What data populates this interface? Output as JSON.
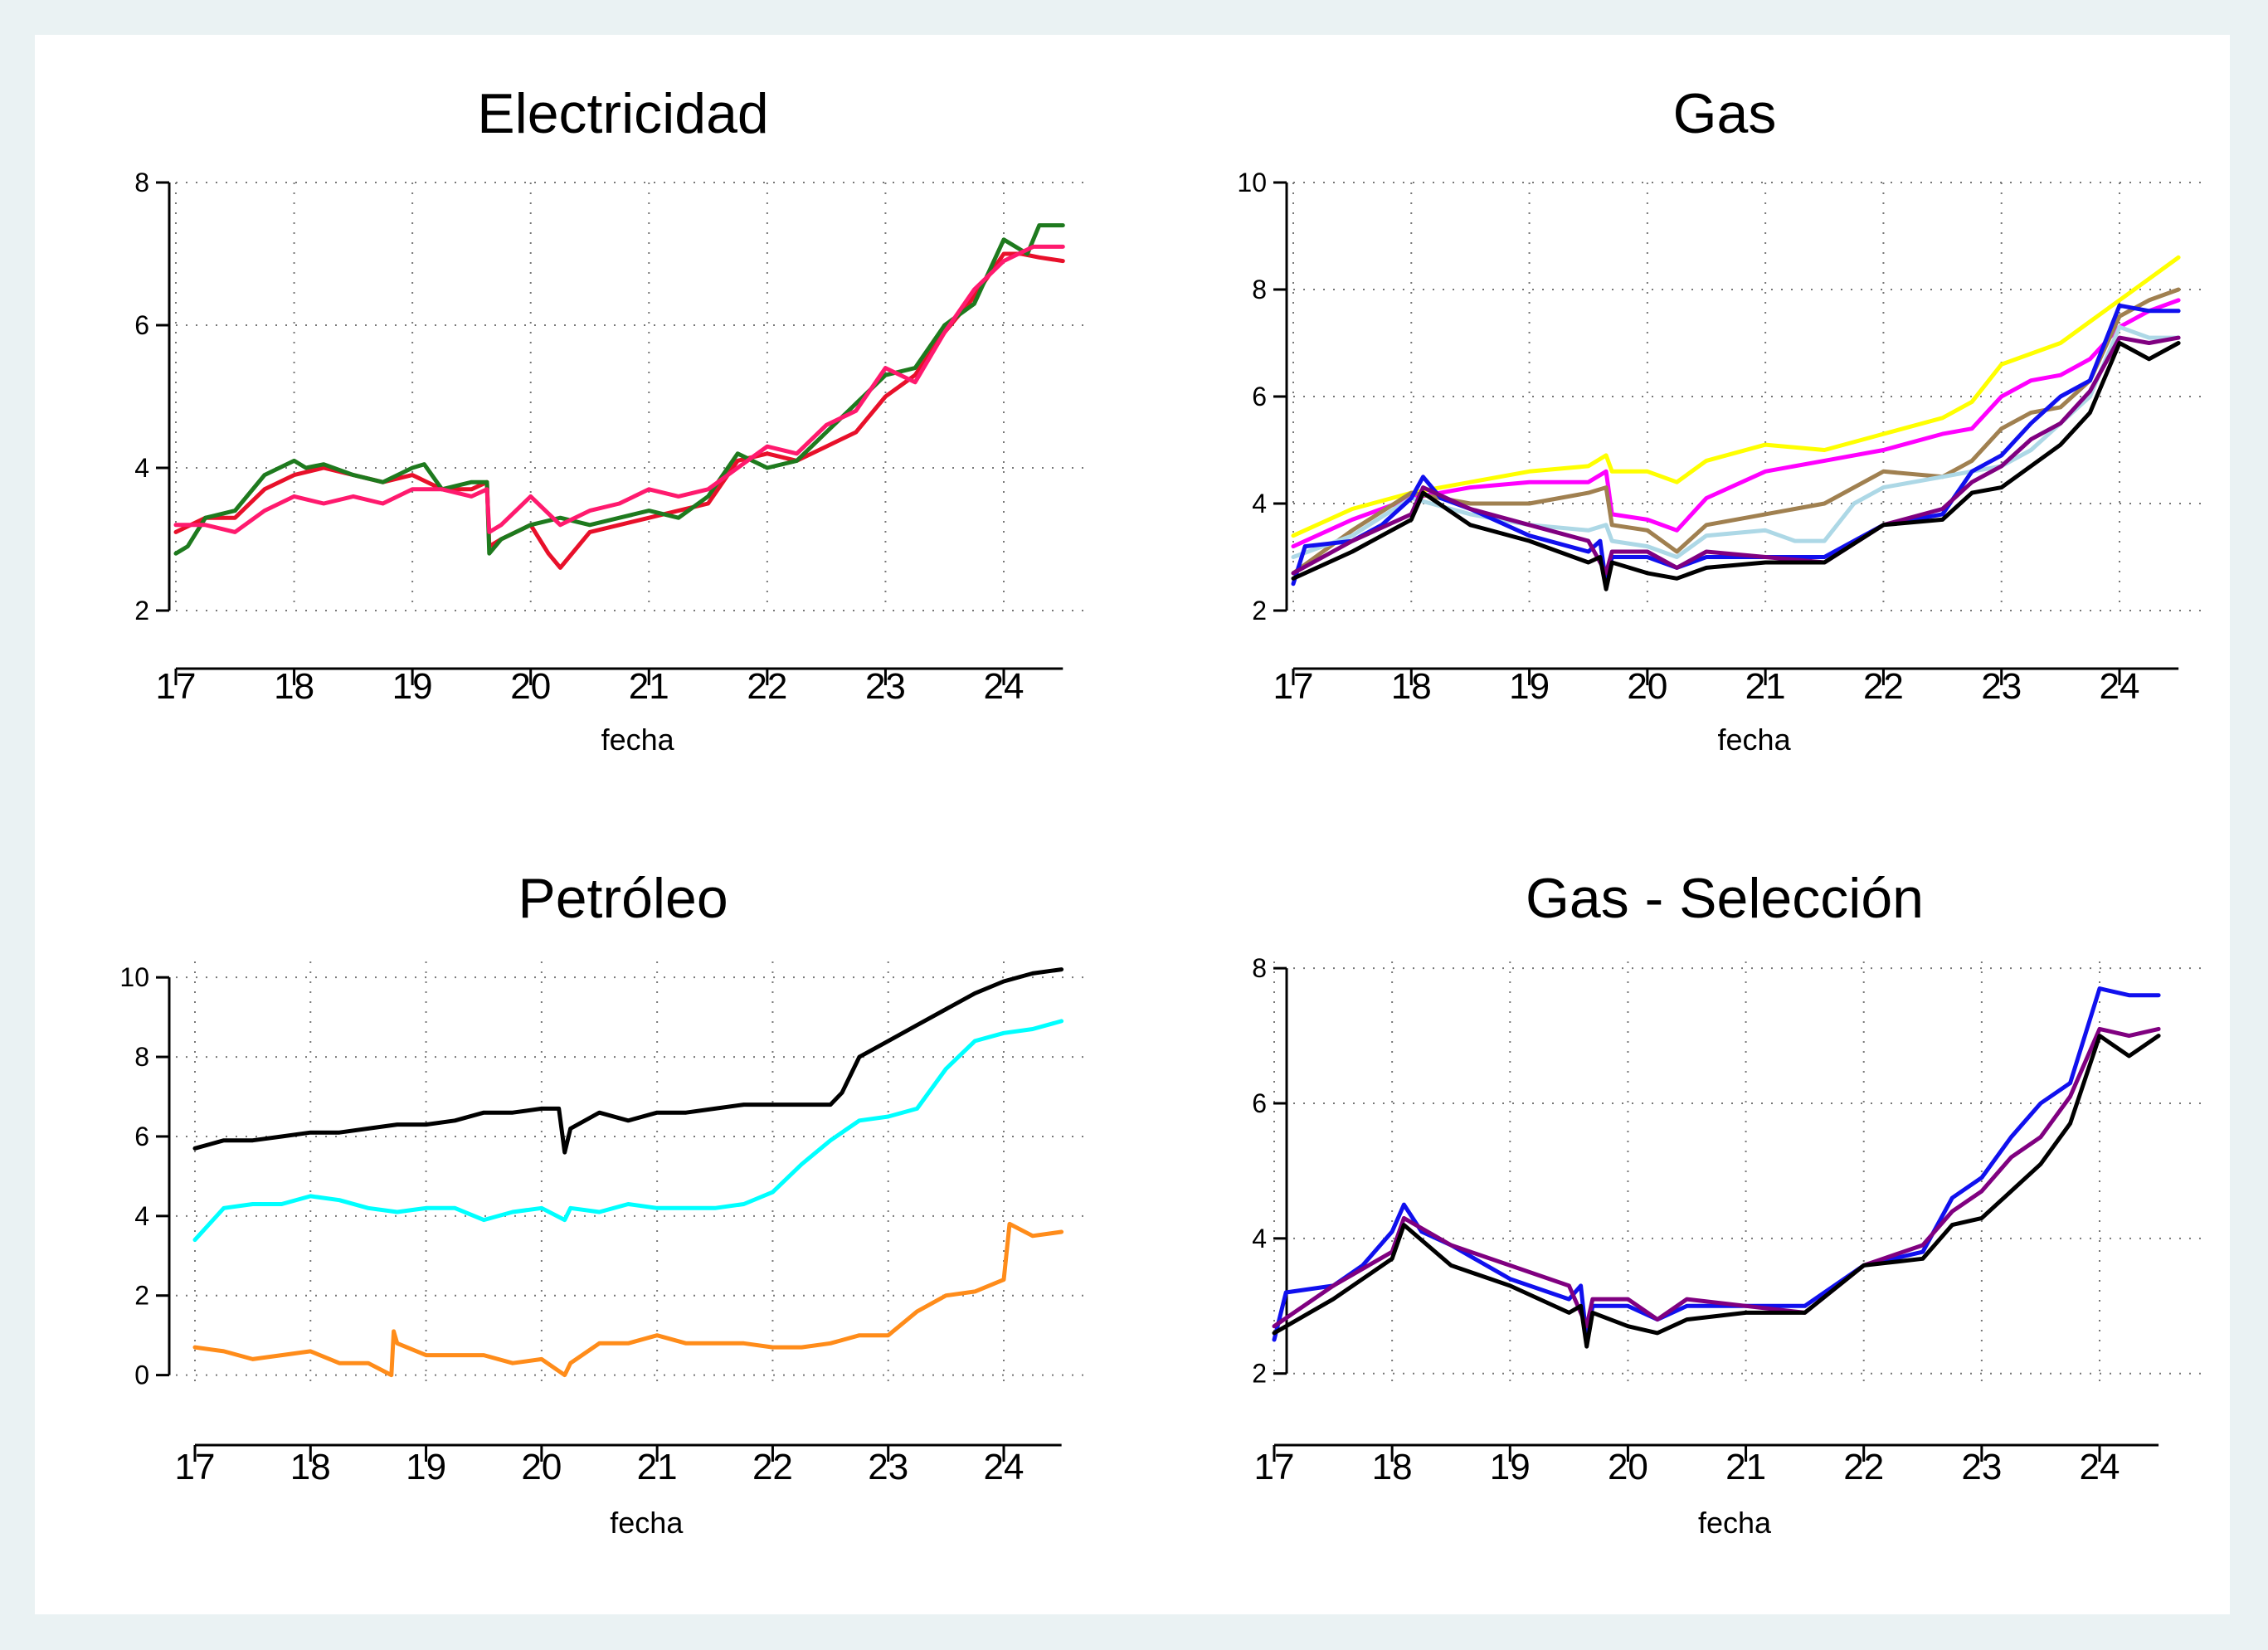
{
  "chart_data": [
    {
      "type": "line",
      "title": "Electricidad",
      "xlabel": "fecha",
      "xticks": [
        "17",
        "18",
        "19",
        "20",
        "21",
        "22",
        "23",
        "24"
      ],
      "xlim": [
        17,
        24.5
      ],
      "yticks": [
        "2",
        "4",
        "6",
        "8"
      ],
      "ylim": [
        2,
        8
      ],
      "grid": true,
      "series": [
        {
          "color": "#e8102a",
          "x": [
            17.0,
            17.25,
            17.5,
            17.75,
            18.0,
            18.25,
            18.5,
            18.75,
            19.0,
            19.25,
            19.5,
            19.63,
            19.65,
            19.75,
            20.0,
            20.15,
            20.25,
            20.5,
            20.75,
            21.0,
            21.25,
            21.5,
            21.75,
            22.0,
            22.25,
            22.5,
            22.75,
            23.0,
            23.25,
            23.5,
            23.75,
            24.0,
            24.15,
            24.3,
            24.5
          ],
          "y": [
            3.1,
            3.3,
            3.3,
            3.7,
            3.9,
            4.0,
            3.9,
            3.8,
            3.9,
            3.7,
            3.7,
            3.8,
            2.9,
            3.0,
            3.2,
            2.8,
            2.6,
            3.1,
            3.2,
            3.3,
            3.4,
            3.5,
            4.1,
            4.2,
            4.1,
            4.3,
            4.5,
            5.0,
            5.3,
            5.9,
            6.4,
            7.0,
            7.0,
            6.95,
            6.9
          ]
        },
        {
          "color": "#1e7a1e",
          "x": [
            17.0,
            17.1,
            17.25,
            17.5,
            17.75,
            18.0,
            18.1,
            18.25,
            18.5,
            18.75,
            19.0,
            19.1,
            19.25,
            19.5,
            19.63,
            19.65,
            19.75,
            20.0,
            20.25,
            20.5,
            20.75,
            21.0,
            21.25,
            21.5,
            21.75,
            22.0,
            22.25,
            22.5,
            22.75,
            23.0,
            23.25,
            23.5,
            23.75,
            24.0,
            24.2,
            24.3,
            24.5
          ],
          "y": [
            2.8,
            2.9,
            3.3,
            3.4,
            3.9,
            4.1,
            4.0,
            4.05,
            3.9,
            3.8,
            4.0,
            4.05,
            3.7,
            3.8,
            3.8,
            2.8,
            3.0,
            3.2,
            3.3,
            3.2,
            3.3,
            3.4,
            3.3,
            3.6,
            4.2,
            4.0,
            4.1,
            4.5,
            4.9,
            5.3,
            5.4,
            6.0,
            6.3,
            7.2,
            7.0,
            7.4,
            7.4
          ]
        },
        {
          "color": "#ff1a6e",
          "x": [
            17.0,
            17.25,
            17.5,
            17.75,
            18.0,
            18.25,
            18.5,
            18.75,
            19.0,
            19.25,
            19.5,
            19.63,
            19.65,
            19.75,
            20.0,
            20.25,
            20.5,
            20.75,
            21.0,
            21.25,
            21.5,
            21.75,
            22.0,
            22.25,
            22.5,
            22.75,
            23.0,
            23.25,
            23.5,
            23.75,
            24.0,
            24.25,
            24.5
          ],
          "y": [
            3.2,
            3.2,
            3.1,
            3.4,
            3.6,
            3.5,
            3.6,
            3.5,
            3.7,
            3.7,
            3.6,
            3.7,
            3.1,
            3.2,
            3.6,
            3.2,
            3.4,
            3.5,
            3.7,
            3.6,
            3.7,
            4.0,
            4.3,
            4.2,
            4.6,
            4.8,
            5.4,
            5.2,
            5.9,
            6.5,
            6.9,
            7.1,
            7.1
          ]
        }
      ]
    },
    {
      "type": "line",
      "title": "Gas",
      "xlabel": "fecha",
      "xticks": [
        "17",
        "18",
        "19",
        "20",
        "21",
        "22",
        "23",
        "24"
      ],
      "xlim": [
        17,
        24.5
      ],
      "yticks": [
        "2",
        "4",
        "6",
        "8",
        "10"
      ],
      "ylim": [
        2,
        10
      ],
      "grid": true,
      "series": [
        {
          "color": "#ffff00",
          "x": [
            17.0,
            17.5,
            18.0,
            18.5,
            19.0,
            19.5,
            19.65,
            19.7,
            20.0,
            20.25,
            20.5,
            21.0,
            21.5,
            22.0,
            22.5,
            22.75,
            23.0,
            23.25,
            23.5,
            23.75,
            24.0,
            24.25,
            24.5
          ],
          "y": [
            3.4,
            3.9,
            4.2,
            4.4,
            4.6,
            4.7,
            4.9,
            4.6,
            4.6,
            4.4,
            4.8,
            5.1,
            5.0,
            5.3,
            5.6,
            5.9,
            6.6,
            6.8,
            7.0,
            7.4,
            7.8,
            8.2,
            8.6
          ]
        },
        {
          "color": "#ff00ff",
          "x": [
            17.0,
            17.5,
            18.0,
            18.5,
            19.0,
            19.5,
            19.65,
            19.7,
            20.0,
            20.25,
            20.5,
            21.0,
            21.5,
            22.0,
            22.5,
            22.75,
            23.0,
            23.25,
            23.5,
            23.75,
            24.0,
            24.25,
            24.5
          ],
          "y": [
            3.2,
            3.7,
            4.1,
            4.3,
            4.4,
            4.4,
            4.6,
            3.8,
            3.7,
            3.5,
            4.1,
            4.6,
            4.8,
            5.0,
            5.3,
            5.4,
            6.0,
            6.3,
            6.4,
            6.7,
            7.3,
            7.6,
            7.8
          ]
        },
        {
          "color": "#a08050",
          "x": [
            17.0,
            17.5,
            18.0,
            18.5,
            19.0,
            19.5,
            19.65,
            19.7,
            20.0,
            20.25,
            20.5,
            21.0,
            21.5,
            22.0,
            22.5,
            22.75,
            23.0,
            23.25,
            23.5,
            23.75,
            24.0,
            24.25,
            24.5
          ],
          "y": [
            2.7,
            3.5,
            4.2,
            4.0,
            4.0,
            4.2,
            4.3,
            3.6,
            3.5,
            3.1,
            3.6,
            3.8,
            4.0,
            4.6,
            4.5,
            4.8,
            5.4,
            5.7,
            5.8,
            6.3,
            7.5,
            7.8,
            8.0
          ]
        },
        {
          "color": "#add8e6",
          "x": [
            17.0,
            17.5,
            18.0,
            18.5,
            19.0,
            19.5,
            19.65,
            19.7,
            20.0,
            20.25,
            20.5,
            21.0,
            21.25,
            21.5,
            21.75,
            22.0,
            22.25,
            22.5,
            22.75,
            23.0,
            23.25,
            23.5,
            23.75,
            24.0,
            24.25,
            24.5
          ],
          "y": [
            3.0,
            3.4,
            4.1,
            3.8,
            3.6,
            3.5,
            3.6,
            3.3,
            3.2,
            3.0,
            3.4,
            3.5,
            3.3,
            3.3,
            4.0,
            4.3,
            4.4,
            4.5,
            4.6,
            4.7,
            5.0,
            5.5,
            6.0,
            7.3,
            7.1,
            7.1
          ]
        },
        {
          "color": "#1010ee",
          "x": [
            17.0,
            17.1,
            17.5,
            17.75,
            18.0,
            18.1,
            18.25,
            18.5,
            19.0,
            19.5,
            19.6,
            19.65,
            19.7,
            20.0,
            20.25,
            20.5,
            21.0,
            21.5,
            22.0,
            22.5,
            22.75,
            23.0,
            23.25,
            23.5,
            23.75,
            24.0,
            24.25,
            24.5
          ],
          "y": [
            2.5,
            3.2,
            3.3,
            3.6,
            4.1,
            4.5,
            4.1,
            3.9,
            3.4,
            3.1,
            3.3,
            2.5,
            3.0,
            3.0,
            2.8,
            3.0,
            3.0,
            3.0,
            3.6,
            3.8,
            4.6,
            4.9,
            5.5,
            6.0,
            6.3,
            7.7,
            7.6,
            7.6
          ]
        },
        {
          "color": "#800080",
          "x": [
            17.0,
            17.5,
            18.0,
            18.1,
            18.5,
            19.0,
            19.5,
            19.65,
            19.7,
            20.0,
            20.25,
            20.5,
            21.0,
            21.5,
            22.0,
            22.5,
            22.75,
            23.0,
            23.25,
            23.5,
            23.75,
            24.0,
            24.25,
            24.5
          ],
          "y": [
            2.7,
            3.3,
            3.8,
            4.3,
            3.9,
            3.6,
            3.3,
            2.7,
            3.1,
            3.1,
            2.8,
            3.1,
            3.0,
            2.9,
            3.6,
            3.9,
            4.4,
            4.7,
            5.2,
            5.5,
            6.1,
            7.1,
            7.0,
            7.1
          ]
        },
        {
          "color": "#000000",
          "x": [
            17.0,
            17.5,
            18.0,
            18.1,
            18.5,
            19.0,
            19.5,
            19.6,
            19.65,
            19.7,
            20.0,
            20.25,
            20.5,
            21.0,
            21.5,
            22.0,
            22.5,
            22.75,
            23.0,
            23.25,
            23.5,
            23.75,
            24.0,
            24.25,
            24.5
          ],
          "y": [
            2.6,
            3.1,
            3.7,
            4.2,
            3.6,
            3.3,
            2.9,
            3.0,
            2.4,
            2.9,
            2.7,
            2.6,
            2.8,
            2.9,
            2.9,
            3.6,
            3.7,
            4.2,
            4.3,
            4.7,
            5.1,
            5.7,
            7.0,
            6.7,
            7.0
          ]
        }
      ]
    },
    {
      "type": "line",
      "title": "Petróleo",
      "xlabel": "fecha",
      "xticks": [
        "17",
        "18",
        "19",
        "20",
        "21",
        "22",
        "23",
        "24"
      ],
      "xlim": [
        17,
        24.5
      ],
      "yticks": [
        "0",
        "2",
        "4",
        "6",
        "8",
        "10"
      ],
      "ylim": [
        -0.3,
        10.4
      ],
      "grid": true,
      "series": [
        {
          "color": "#000000",
          "x": [
            17.0,
            17.25,
            17.5,
            17.75,
            18.0,
            18.25,
            18.5,
            18.75,
            19.0,
            19.25,
            19.5,
            19.75,
            20.0,
            20.15,
            20.2,
            20.25,
            20.5,
            20.75,
            21.0,
            21.25,
            21.5,
            21.75,
            22.0,
            22.25,
            22.5,
            22.6,
            22.75,
            23.0,
            23.25,
            23.5,
            23.75,
            24.0,
            24.25,
            24.5
          ],
          "y": [
            5.7,
            5.9,
            5.9,
            6.0,
            6.1,
            6.1,
            6.2,
            6.3,
            6.3,
            6.4,
            6.6,
            6.6,
            6.7,
            6.7,
            5.6,
            6.2,
            6.6,
            6.4,
            6.6,
            6.6,
            6.7,
            6.8,
            6.8,
            6.8,
            6.8,
            7.1,
            8.0,
            8.4,
            8.8,
            9.2,
            9.6,
            9.9,
            10.1,
            10.2
          ]
        },
        {
          "color": "#00ffff",
          "x": [
            17.0,
            17.25,
            17.5,
            17.75,
            18.0,
            18.25,
            18.5,
            18.75,
            19.0,
            19.25,
            19.5,
            19.75,
            20.0,
            20.2,
            20.25,
            20.5,
            20.75,
            21.0,
            21.25,
            21.5,
            21.75,
            22.0,
            22.25,
            22.5,
            22.75,
            23.0,
            23.25,
            23.5,
            23.75,
            24.0,
            24.25,
            24.5
          ],
          "y": [
            3.4,
            4.2,
            4.3,
            4.3,
            4.5,
            4.4,
            4.2,
            4.1,
            4.2,
            4.2,
            3.9,
            4.1,
            4.2,
            3.9,
            4.2,
            4.1,
            4.3,
            4.2,
            4.2,
            4.2,
            4.3,
            4.6,
            5.3,
            5.9,
            6.4,
            6.5,
            6.7,
            7.7,
            8.4,
            8.6,
            8.7,
            8.9
          ]
        },
        {
          "color": "#ff8c1a",
          "x": [
            17.0,
            17.25,
            17.5,
            17.75,
            18.0,
            18.25,
            18.5,
            18.7,
            18.72,
            18.75,
            19.0,
            19.25,
            19.5,
            19.75,
            20.0,
            20.2,
            20.25,
            20.5,
            20.75,
            21.0,
            21.25,
            21.5,
            21.75,
            22.0,
            22.25,
            22.5,
            22.75,
            23.0,
            23.25,
            23.5,
            23.75,
            24.0,
            24.05,
            24.25,
            24.5
          ],
          "y": [
            0.7,
            0.6,
            0.4,
            0.5,
            0.6,
            0.3,
            0.3,
            0.0,
            1.1,
            0.8,
            0.5,
            0.5,
            0.5,
            0.3,
            0.4,
            0.0,
            0.3,
            0.8,
            0.8,
            1.0,
            0.8,
            0.8,
            0.8,
            0.7,
            0.7,
            0.8,
            1.0,
            1.0,
            1.6,
            2.0,
            2.1,
            2.4,
            3.8,
            3.5,
            3.6
          ]
        }
      ]
    },
    {
      "type": "line",
      "title": "Gas - Selección",
      "xlabel": "fecha",
      "xticks": [
        "17",
        "18",
        "19",
        "20",
        "21",
        "22",
        "23",
        "24"
      ],
      "xlim": [
        17,
        24.5
      ],
      "yticks": [
        "2",
        "4",
        "6",
        "8"
      ],
      "ylim": [
        1.8,
        8.1
      ],
      "grid": true,
      "series": [
        {
          "color": "#1010ee",
          "x": [
            17.0,
            17.1,
            17.5,
            17.75,
            18.0,
            18.1,
            18.25,
            18.5,
            19.0,
            19.5,
            19.6,
            19.65,
            19.7,
            20.0,
            20.25,
            20.5,
            21.0,
            21.5,
            22.0,
            22.5,
            22.75,
            23.0,
            23.25,
            23.5,
            23.75,
            24.0,
            24.25,
            24.5
          ],
          "y": [
            2.5,
            3.2,
            3.3,
            3.6,
            4.1,
            4.5,
            4.1,
            3.9,
            3.4,
            3.1,
            3.3,
            2.5,
            3.0,
            3.0,
            2.8,
            3.0,
            3.0,
            3.0,
            3.6,
            3.8,
            4.6,
            4.9,
            5.5,
            6.0,
            6.3,
            7.7,
            7.6,
            7.6
          ]
        },
        {
          "color": "#800080",
          "x": [
            17.0,
            17.5,
            18.0,
            18.1,
            18.5,
            19.0,
            19.5,
            19.65,
            19.7,
            20.0,
            20.25,
            20.5,
            21.0,
            21.5,
            22.0,
            22.5,
            22.75,
            23.0,
            23.25,
            23.5,
            23.75,
            24.0,
            24.25,
            24.5
          ],
          "y": [
            2.7,
            3.3,
            3.8,
            4.3,
            3.9,
            3.6,
            3.3,
            2.7,
            3.1,
            3.1,
            2.8,
            3.1,
            3.0,
            2.9,
            3.6,
            3.9,
            4.4,
            4.7,
            5.2,
            5.5,
            6.1,
            7.1,
            7.0,
            7.1
          ]
        },
        {
          "color": "#000000",
          "x": [
            17.0,
            17.5,
            18.0,
            18.1,
            18.5,
            19.0,
            19.5,
            19.6,
            19.65,
            19.7,
            20.0,
            20.25,
            20.5,
            21.0,
            21.5,
            22.0,
            22.5,
            22.75,
            23.0,
            23.25,
            23.5,
            23.75,
            24.0,
            24.25,
            24.5
          ],
          "y": [
            2.6,
            3.1,
            3.7,
            4.2,
            3.6,
            3.3,
            2.9,
            3.0,
            2.4,
            2.9,
            2.7,
            2.6,
            2.8,
            2.9,
            2.9,
            3.6,
            3.7,
            4.2,
            4.3,
            4.7,
            5.1,
            5.7,
            7.0,
            6.7,
            7.0
          ]
        }
      ]
    }
  ]
}
